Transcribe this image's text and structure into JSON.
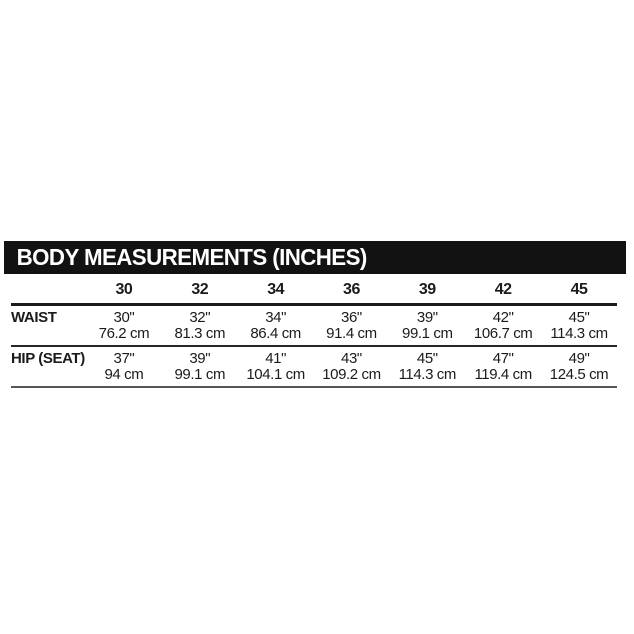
{
  "page": {
    "background": "#ffffff",
    "text_color": "#1b1b1b"
  },
  "size_chart": {
    "title": "BODY MEASUREMENTS (INCHES)",
    "title_bar": {
      "background": "#121212",
      "text_color": "#ffffff"
    },
    "columns": [
      "30",
      "32",
      "34",
      "36",
      "39",
      "42",
      "45"
    ],
    "rows": [
      {
        "label": "WAIST",
        "inches": [
          "30\"",
          "32\"",
          "34\"",
          "36\"",
          "39\"",
          "42\"",
          "45\""
        ],
        "cm": [
          "76.2 cm",
          "81.3 cm",
          "86.4 cm",
          "91.4 cm",
          "99.1 cm",
          "106.7 cm",
          "114.3 cm"
        ]
      },
      {
        "label": "HIP (SEAT)",
        "inches": [
          "37\"",
          "39\"",
          "41\"",
          "43\"",
          "45\"",
          "47\"",
          "49\""
        ],
        "cm": [
          "94 cm",
          "99.1 cm",
          "104.1 cm",
          "109.2 cm",
          "114.3 cm",
          "119.4 cm",
          "124.5 cm"
        ]
      }
    ]
  },
  "chart_data": {
    "type": "table",
    "title": "BODY MEASUREMENTS (INCHES)",
    "columns": [
      "30",
      "32",
      "34",
      "36",
      "39",
      "42",
      "45"
    ],
    "rows": [
      {
        "label": "WAIST",
        "inches": [
          30,
          32,
          34,
          36,
          39,
          42,
          45
        ],
        "cm": [
          76.2,
          81.3,
          86.4,
          91.4,
          99.1,
          106.7,
          114.3
        ]
      },
      {
        "label": "HIP (SEAT)",
        "inches": [
          37,
          39,
          41,
          43,
          45,
          47,
          49
        ],
        "cm": [
          94,
          99.1,
          104.1,
          109.2,
          114.3,
          119.4,
          124.5
        ]
      }
    ]
  }
}
